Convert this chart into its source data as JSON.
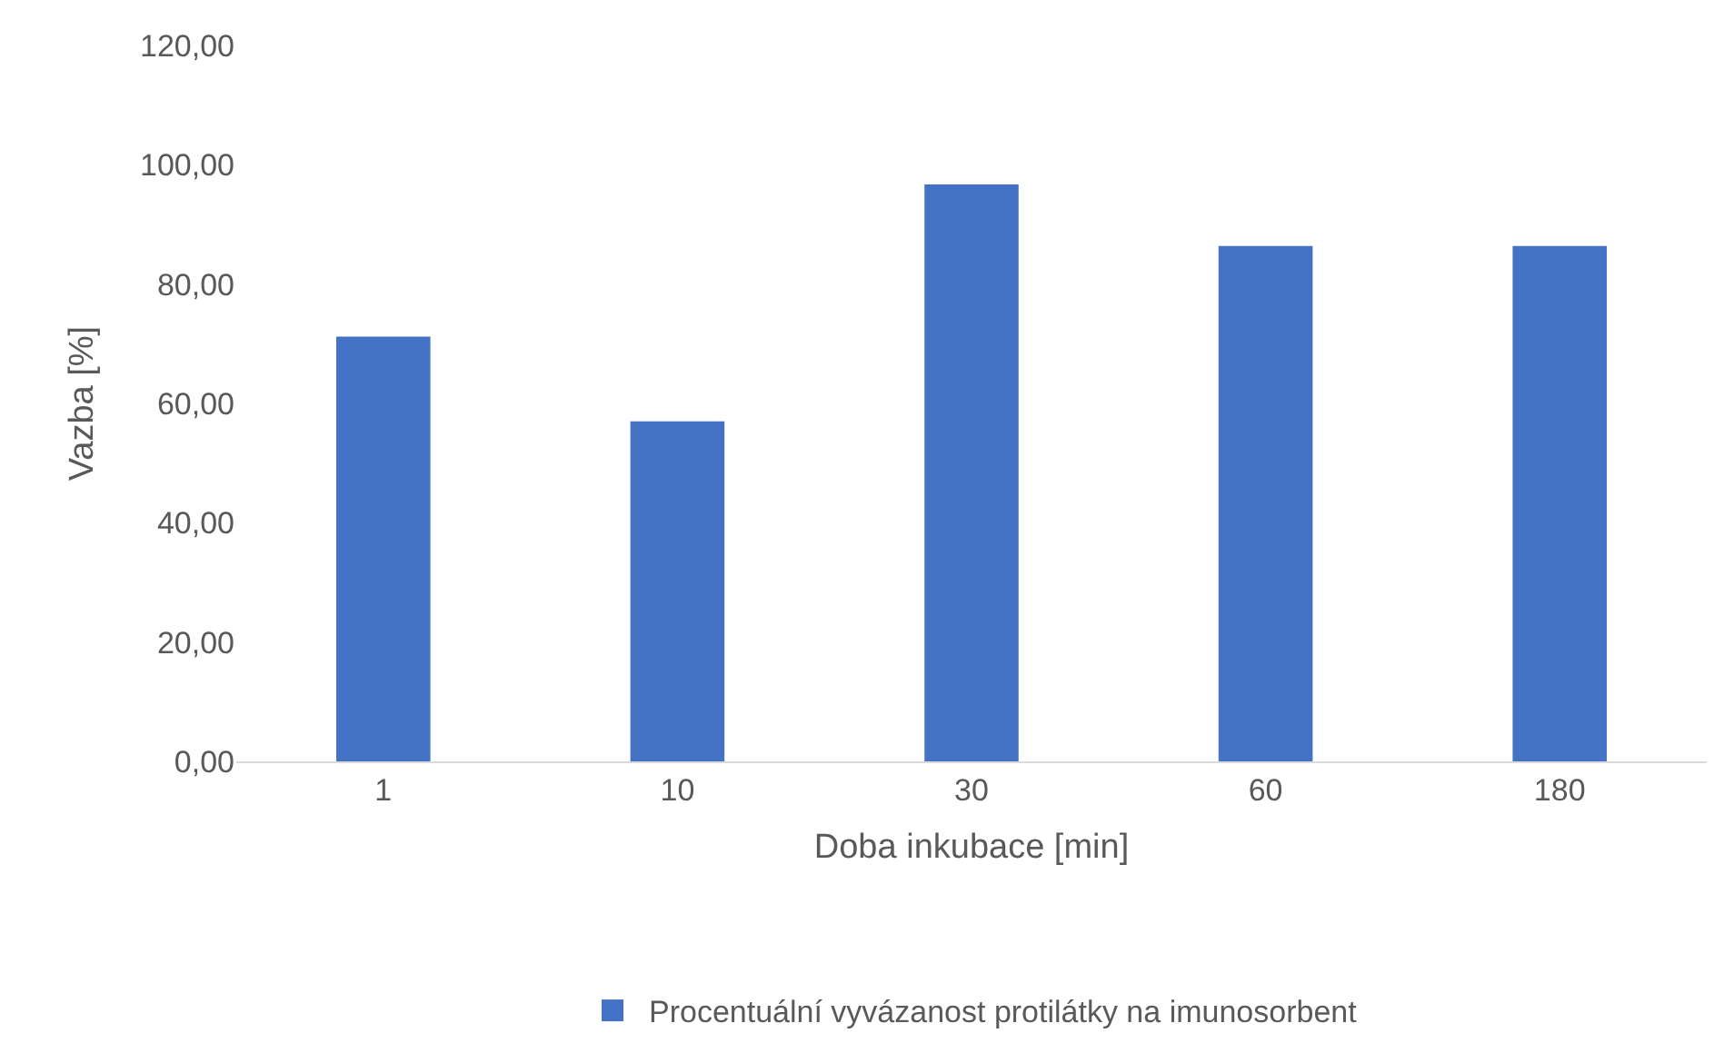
{
  "chart_data": {
    "type": "bar",
    "xlabel": "Doba inkubace [min]",
    "ylabel": "Vazba [%]",
    "categories": [
      "1",
      "10",
      "30",
      "60",
      "180"
    ],
    "series": [
      {
        "name": "Procentuální vyvázanost protilátky na imunosorbent",
        "color": "#4472c4",
        "values": [
          71.2,
          57.0,
          96.7,
          86.4,
          86.4
        ]
      }
    ],
    "ylim": [
      0,
      120
    ],
    "yticks": [
      {
        "value": 0,
        "label": "0,00"
      },
      {
        "value": 20,
        "label": "20,00"
      },
      {
        "value": 40,
        "label": "40,00"
      },
      {
        "value": 60,
        "label": "60,00"
      },
      {
        "value": 80,
        "label": "80,00"
      },
      {
        "value": 100,
        "label": "100,00"
      },
      {
        "value": 120,
        "label": "120,00"
      }
    ],
    "grid": false,
    "legend": "bottom"
  }
}
